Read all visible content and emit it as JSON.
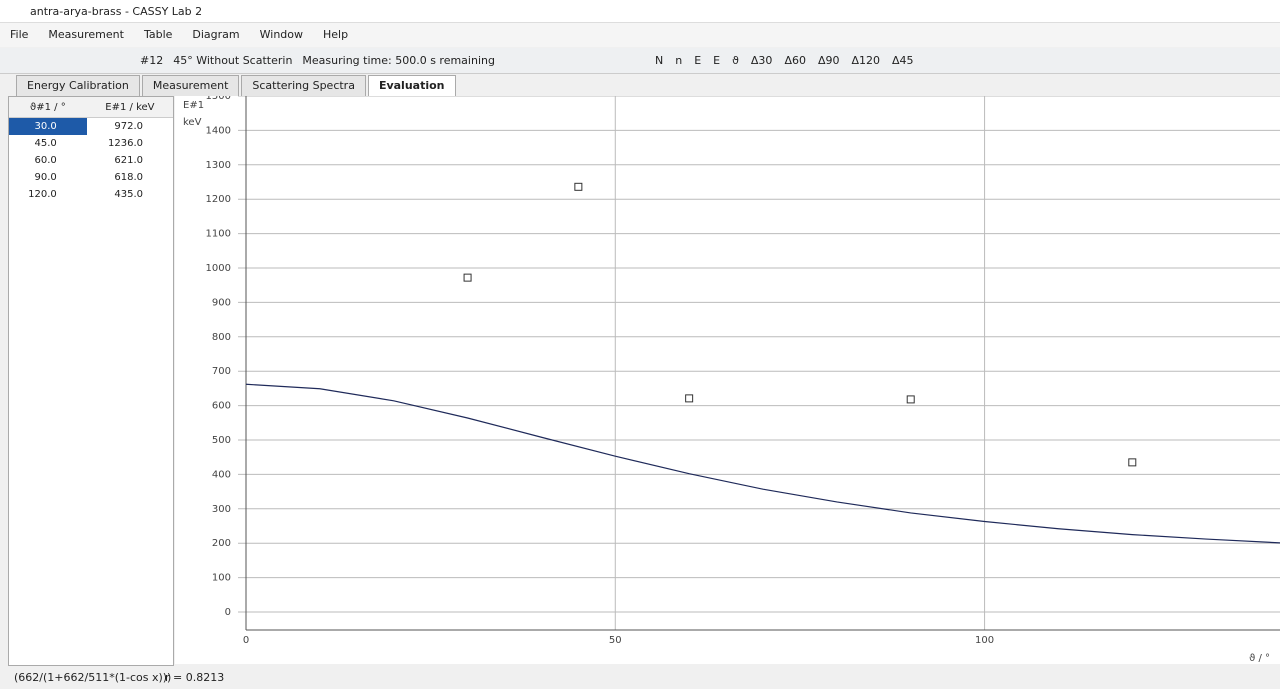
{
  "window": {
    "title": "antra-arya-brass - CASSY Lab 2"
  },
  "menu": [
    "File",
    "Measurement",
    "Table",
    "Diagram",
    "Window",
    "Help"
  ],
  "toolbar": {
    "measurement": "#12",
    "series": "45° Without Scatterin",
    "timer": "Measuring time: 500.0 s remaining",
    "symbols": [
      "N",
      "n",
      "E",
      "E",
      "ϑ",
      "Δ30",
      "Δ60",
      "Δ90",
      "Δ120",
      "Δ45"
    ]
  },
  "tabs": [
    "Energy Calibration",
    "Measurement",
    "Scattering Spectra",
    "Evaluation"
  ],
  "table": {
    "headers": [
      "ϑ#1 / °",
      "E#1 / keV"
    ],
    "rows": [
      [
        "30.0",
        "972.0"
      ],
      [
        "45.0",
        "1236.0"
      ],
      [
        "60.0",
        "621.0"
      ],
      [
        "90.0",
        "618.0"
      ],
      [
        "120.0",
        "435.0"
      ]
    ]
  },
  "chart_data": {
    "type": "scatter",
    "y_label": "E#1",
    "y_unit": "keV",
    "x_label": "ϑ / °",
    "x": [
      30,
      45,
      60,
      90,
      120
    ],
    "values": [
      972,
      1236,
      621,
      618,
      435
    ],
    "color": "#333333",
    "fit": {
      "x": [
        0,
        10,
        20,
        30,
        40,
        50,
        60,
        70,
        80,
        90,
        100,
        110,
        120,
        130,
        140
      ],
      "values": [
        662,
        649,
        614,
        564,
        508,
        453,
        402,
        357,
        320,
        288,
        263,
        242,
        225,
        212,
        201
      ],
      "color": "#1f2a5a"
    },
    "xlim": [
      0,
      140
    ],
    "ylim": [
      0,
      1500
    ],
    "xticks": [
      0,
      50,
      100
    ],
    "yticks": [
      0,
      100,
      200,
      300,
      400,
      500,
      600,
      700,
      800,
      900,
      1000,
      1100,
      1200,
      1300,
      1400,
      1500
    ],
    "grid": true
  },
  "status": {
    "formula": "(662/(1+662/511*(1-cos x)))",
    "r": "r = 0.8213"
  }
}
